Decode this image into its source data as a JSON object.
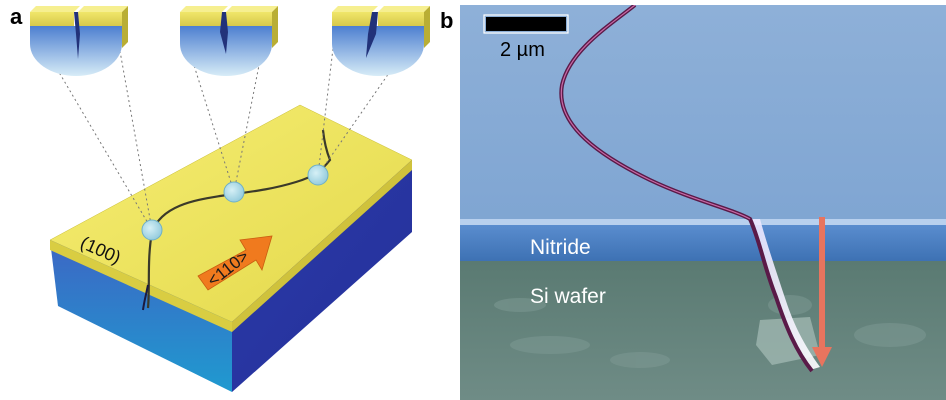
{
  "panel_a": {
    "letter": "a",
    "plane_label": "(100)",
    "direction_label": "<110>"
  },
  "panel_b": {
    "letter": "b",
    "scale_bar_label": "2 µm",
    "nitride_label": "Nitride",
    "si_wafer_label": "Si wafer"
  },
  "colors": {
    "top_face": "#efe55a",
    "side_face": "#2f45b0",
    "arrow": "#f07a1e",
    "marker": "#9fd3e3",
    "sem_nitride": "#8fb2da",
    "sem_layer": "#3f7cc0",
    "sem_wafer": "#5f7f76",
    "crack_sem": "#6a1f4f"
  }
}
